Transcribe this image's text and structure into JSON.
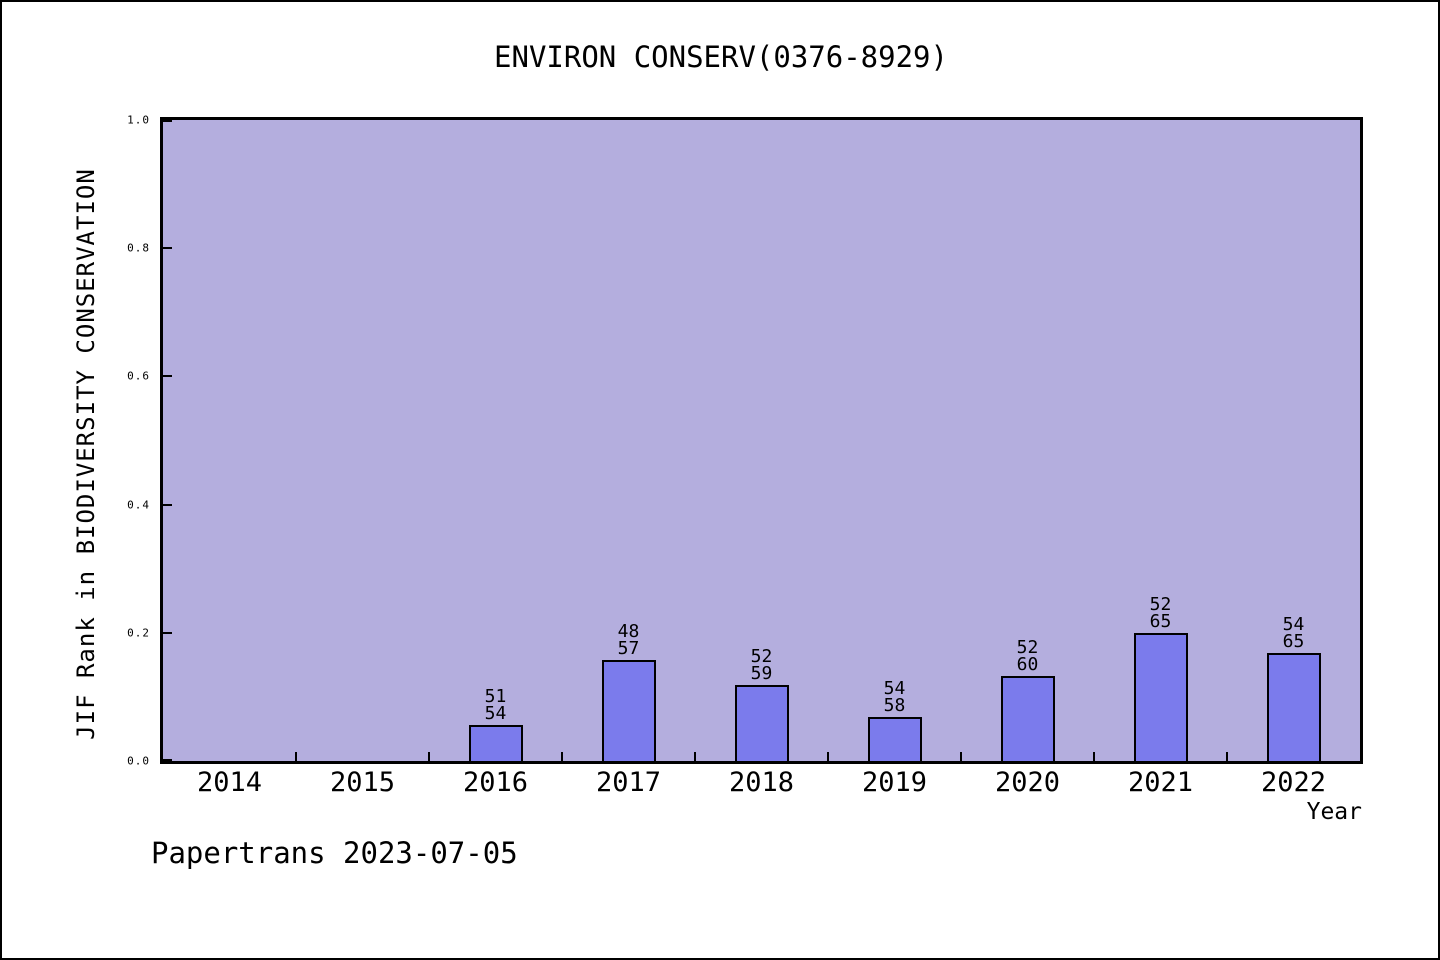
{
  "chart_data": {
    "type": "bar",
    "title": "ENVIRON CONSERV(0376-8929)",
    "xlabel": "Year",
    "ylabel": "JIF Rank in BIODIVERSITY CONSERVATION",
    "categories": [
      "2014",
      "2015",
      "2016",
      "2017",
      "2018",
      "2019",
      "2020",
      "2021",
      "2022"
    ],
    "yticks": [
      "0.0",
      "0.2",
      "0.4",
      "0.6",
      "0.8",
      "1.0"
    ],
    "ylim": [
      0.0,
      1.0
    ],
    "grid": false,
    "legend": "none",
    "bars": [
      {
        "year": "2016",
        "rank": 51,
        "total": 54,
        "value": 0.0556
      },
      {
        "year": "2017",
        "rank": 48,
        "total": 57,
        "value": 0.1579
      },
      {
        "year": "2018",
        "rank": 52,
        "total": 59,
        "value": 0.1186
      },
      {
        "year": "2019",
        "rank": 54,
        "total": 58,
        "value": 0.069
      },
      {
        "year": "2020",
        "rank": 52,
        "total": 60,
        "value": 0.1333
      },
      {
        "year": "2021",
        "rank": 52,
        "total": 65,
        "value": 0.2
      },
      {
        "year": "2022",
        "rank": 54,
        "total": 65,
        "value": 0.1692
      }
    ],
    "colors": {
      "plot_background": "#b4aede",
      "bar_fill": "#7b7bec",
      "bar_edge": "#000000",
      "frame": "#000000",
      "text": "#000000"
    }
  },
  "footer": {
    "note": "Papertrans 2023-07-05"
  }
}
